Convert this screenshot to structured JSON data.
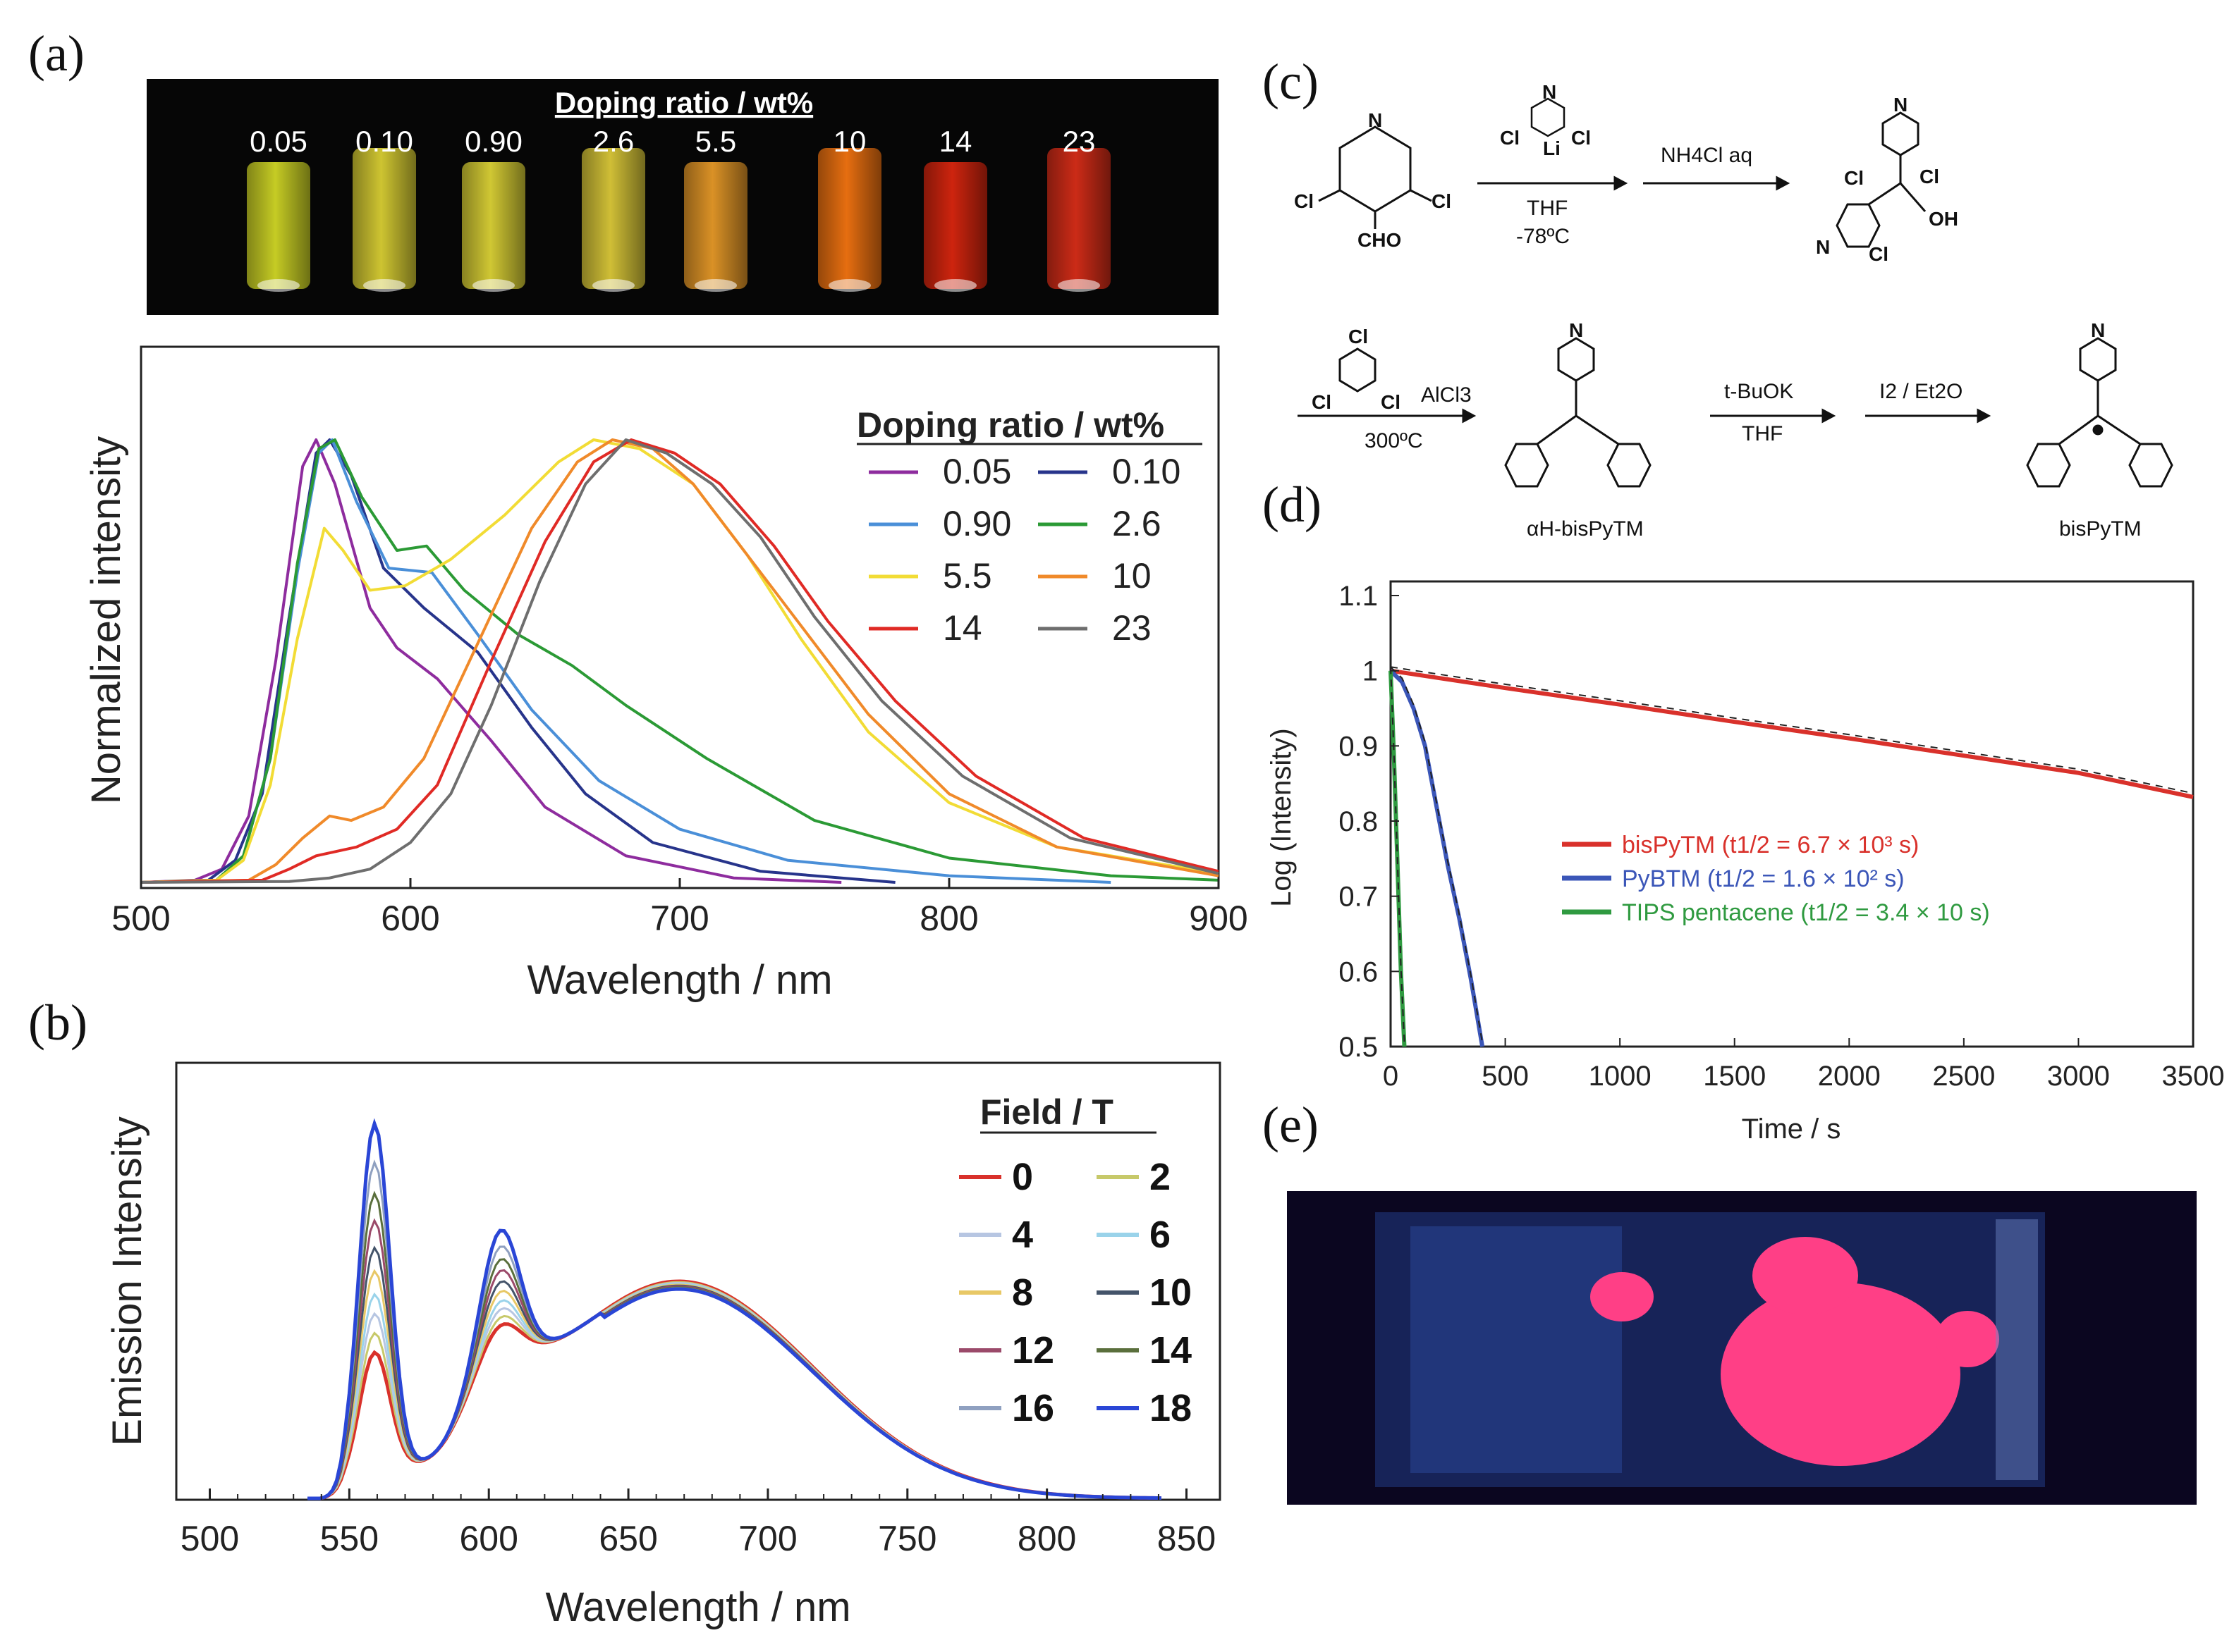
{
  "panels": {
    "a": "(a)",
    "b": "(b)",
    "c": "(c)",
    "d": "(d)",
    "e": "(e)"
  },
  "photo_a": {
    "title": "Doping ratio / wt%",
    "samples": [
      {
        "label": "0.05",
        "color": "#e8ef2a"
      },
      {
        "label": "0.10",
        "color": "#f2e63a"
      },
      {
        "label": "0.90",
        "color": "#f5ea3c"
      },
      {
        "label": "2.6",
        "color": "#f3df40"
      },
      {
        "label": "5.5",
        "color": "#f2a12a"
      },
      {
        "label": "10",
        "color": "#ff7a12"
      },
      {
        "label": "14",
        "color": "#e3280f"
      },
      {
        "label": "23",
        "color": "#e2301a"
      }
    ]
  },
  "scheme_c": {
    "reagent1_top": "Cl",
    "reagent1_li": "Li",
    "thf": "THF",
    "temp1": "-78ºC",
    "quench": "NH4Cl aq",
    "alcl3": "AlCl3",
    "temp2": "300ºC",
    "base": "t-BuOK",
    "thf2": "THF",
    "oxid": "I2 / Et2O",
    "cho": "CHO",
    "oh": "OH",
    "cl": "Cl",
    "n": "N",
    "precursor_label": "αH-bisPyTM",
    "product_label": "bisPyTM"
  },
  "chart_data": [
    {
      "id": "a",
      "type": "line",
      "xlabel": "Wavelength / nm",
      "ylabel": "Normalized intensity",
      "xlim": [
        500,
        900
      ],
      "ylim": [
        0,
        1.0
      ],
      "xticks": [
        "500",
        "600",
        "700",
        "800",
        "900"
      ],
      "legend_title": "Doping ratio / wt%",
      "series": [
        {
          "name": "0.05",
          "color": "#8e2c9e",
          "points": [
            [
              500,
              0
            ],
            [
              520,
              0.005
            ],
            [
              530,
              0.03
            ],
            [
              540,
              0.15
            ],
            [
              550,
              0.5
            ],
            [
              560,
              0.94
            ],
            [
              565,
              1.0
            ],
            [
              572,
              0.9
            ],
            [
              585,
              0.62
            ],
            [
              595,
              0.53
            ],
            [
              610,
              0.46
            ],
            [
              630,
              0.32
            ],
            [
              650,
              0.17
            ],
            [
              680,
              0.06
            ],
            [
              720,
              0.01
            ],
            [
              760,
              0
            ]
          ]
        },
        {
          "name": "0.10",
          "color": "#27348b",
          "points": [
            [
              500,
              0
            ],
            [
              525,
              0.005
            ],
            [
              535,
              0.05
            ],
            [
              545,
              0.2
            ],
            [
              555,
              0.6
            ],
            [
              565,
              0.97
            ],
            [
              570,
              1.0
            ],
            [
              578,
              0.92
            ],
            [
              590,
              0.71
            ],
            [
              605,
              0.62
            ],
            [
              625,
              0.52
            ],
            [
              645,
              0.35
            ],
            [
              665,
              0.2
            ],
            [
              690,
              0.09
            ],
            [
              730,
              0.025
            ],
            [
              780,
              0
            ]
          ]
        },
        {
          "name": "0.90",
          "color": "#4a8fd8",
          "points": [
            [
              500,
              0
            ],
            [
              528,
              0.005
            ],
            [
              538,
              0.06
            ],
            [
              548,
              0.28
            ],
            [
              558,
              0.7
            ],
            [
              566,
              0.97
            ],
            [
              571,
              1.0
            ],
            [
              580,
              0.86
            ],
            [
              592,
              0.71
            ],
            [
              608,
              0.7
            ],
            [
              625,
              0.56
            ],
            [
              645,
              0.39
            ],
            [
              670,
              0.23
            ],
            [
              700,
              0.12
            ],
            [
              740,
              0.05
            ],
            [
              800,
              0.015
            ],
            [
              860,
              0
            ]
          ]
        },
        {
          "name": "2.6",
          "color": "#2b9a35",
          "points": [
            [
              500,
              0
            ],
            [
              528,
              0.005
            ],
            [
              538,
              0.06
            ],
            [
              548,
              0.28
            ],
            [
              558,
              0.72
            ],
            [
              566,
              0.98
            ],
            [
              572,
              1.0
            ],
            [
              582,
              0.87
            ],
            [
              595,
              0.75
            ],
            [
              606,
              0.76
            ],
            [
              620,
              0.66
            ],
            [
              640,
              0.56
            ],
            [
              660,
              0.49
            ],
            [
              680,
              0.4
            ],
            [
              710,
              0.28
            ],
            [
              750,
              0.14
            ],
            [
              800,
              0.055
            ],
            [
              860,
              0.015
            ],
            [
              900,
              0.005
            ]
          ]
        },
        {
          "name": "5.5",
          "color": "#f2dc35",
          "points": [
            [
              500,
              0
            ],
            [
              528,
              0.005
            ],
            [
              538,
              0.05
            ],
            [
              548,
              0.22
            ],
            [
              558,
              0.55
            ],
            [
              568,
              0.8
            ],
            [
              575,
              0.75
            ],
            [
              585,
              0.66
            ],
            [
              598,
              0.67
            ],
            [
              615,
              0.73
            ],
            [
              635,
              0.83
            ],
            [
              655,
              0.95
            ],
            [
              668,
              1.0
            ],
            [
              685,
              0.98
            ],
            [
              705,
              0.9
            ],
            [
              725,
              0.74
            ],
            [
              745,
              0.55
            ],
            [
              770,
              0.34
            ],
            [
              800,
              0.18
            ],
            [
              840,
              0.08
            ],
            [
              900,
              0.02
            ]
          ]
        },
        {
          "name": "10",
          "color": "#f08a2a",
          "points": [
            [
              500,
              0
            ],
            [
              540,
              0.005
            ],
            [
              550,
              0.04
            ],
            [
              560,
              0.1
            ],
            [
              570,
              0.15
            ],
            [
              578,
              0.14
            ],
            [
              590,
              0.17
            ],
            [
              605,
              0.28
            ],
            [
              625,
              0.54
            ],
            [
              645,
              0.8
            ],
            [
              662,
              0.95
            ],
            [
              675,
              1.0
            ],
            [
              690,
              0.98
            ],
            [
              705,
              0.9
            ],
            [
              725,
              0.74
            ],
            [
              745,
              0.58
            ],
            [
              770,
              0.38
            ],
            [
              800,
              0.2
            ],
            [
              840,
              0.08
            ],
            [
              900,
              0.015
            ]
          ]
        },
        {
          "name": "14",
          "color": "#e02a25",
          "points": [
            [
              500,
              0
            ],
            [
              545,
              0.005
            ],
            [
              555,
              0.03
            ],
            [
              565,
              0.06
            ],
            [
              580,
              0.08
            ],
            [
              595,
              0.12
            ],
            [
              610,
              0.22
            ],
            [
              630,
              0.5
            ],
            [
              650,
              0.77
            ],
            [
              668,
              0.95
            ],
            [
              682,
              1.0
            ],
            [
              698,
              0.97
            ],
            [
              715,
              0.9
            ],
            [
              735,
              0.76
            ],
            [
              755,
              0.59
            ],
            [
              780,
              0.41
            ],
            [
              810,
              0.24
            ],
            [
              850,
              0.1
            ],
            [
              900,
              0.025
            ]
          ]
        },
        {
          "name": "23",
          "color": "#6e6e6e",
          "points": [
            [
              500,
              0
            ],
            [
              555,
              0.002
            ],
            [
              570,
              0.01
            ],
            [
              585,
              0.03
            ],
            [
              600,
              0.09
            ],
            [
              615,
              0.2
            ],
            [
              630,
              0.4
            ],
            [
              648,
              0.68
            ],
            [
              665,
              0.9
            ],
            [
              680,
              1.0
            ],
            [
              695,
              0.97
            ],
            [
              712,
              0.9
            ],
            [
              730,
              0.78
            ],
            [
              750,
              0.6
            ],
            [
              775,
              0.41
            ],
            [
              805,
              0.24
            ],
            [
              845,
              0.1
            ],
            [
              900,
              0.02
            ]
          ]
        }
      ]
    },
    {
      "id": "b",
      "type": "line",
      "xlabel": "Wavelength / nm",
      "ylabel": "Emission Intensity",
      "xlim": [
        500,
        850
      ],
      "ylim": [
        0,
        1.0
      ],
      "xticks": [
        "500",
        "550",
        "600",
        "650",
        "700",
        "750",
        "800",
        "850"
      ],
      "legend_title": "Field / T",
      "series": [
        {
          "name": "0",
          "color": "#d9312b",
          "peak": 0.33
        },
        {
          "name": "2",
          "color": "#c7c96a",
          "peak": 0.38
        },
        {
          "name": "4",
          "color": "#b7c6e2",
          "peak": 0.43
        },
        {
          "name": "6",
          "color": "#9ad3ea",
          "peak": 0.48
        },
        {
          "name": "8",
          "color": "#e8c866",
          "peak": 0.54
        },
        {
          "name": "10",
          "color": "#44546a",
          "peak": 0.6
        },
        {
          "name": "12",
          "color": "#9b4a6a",
          "peak": 0.67
        },
        {
          "name": "14",
          "color": "#5a6f3c",
          "peak": 0.74
        },
        {
          "name": "16",
          "color": "#8fa0c0",
          "peak": 0.82
        },
        {
          "name": "18",
          "color": "#2a46d6",
          "peak": 0.92
        }
      ]
    },
    {
      "id": "d",
      "type": "line",
      "xlabel": "Time / s",
      "ylabel": "Log (Intensity)",
      "xlim": [
        0,
        3500
      ],
      "ylim": [
        0.5,
        1.1
      ],
      "xticks": [
        "0",
        "500",
        "1000",
        "1500",
        "2000",
        "2500",
        "3000",
        "3500"
      ],
      "yticks": [
        "0.5",
        "0.6",
        "0.7",
        "0.8",
        "0.9",
        "1",
        "1.1"
      ],
      "series": [
        {
          "name": "bisPyTM",
          "half_life": "6.7 × 10³ s",
          "color": "#d9312b",
          "points": [
            [
              0,
              1.0
            ],
            [
              500,
              0.977
            ],
            [
              1000,
              0.955
            ],
            [
              1500,
              0.932
            ],
            [
              2000,
              0.91
            ],
            [
              2500,
              0.887
            ],
            [
              3000,
              0.864
            ],
            [
              3500,
              0.832
            ]
          ]
        },
        {
          "name": "PyBTM",
          "half_life": "1.6 × 10² s",
          "color": "#3b56b8",
          "points": [
            [
              0,
              1.0
            ],
            [
              50,
              0.985
            ],
            [
              100,
              0.95
            ],
            [
              150,
              0.9
            ],
            [
              200,
              0.82
            ],
            [
              250,
              0.74
            ],
            [
              300,
              0.67
            ],
            [
              350,
              0.59
            ],
            [
              400,
              0.5
            ]
          ]
        },
        {
          "name": "TIPS pentacene",
          "half_life": "3.4 × 10 s",
          "color": "#2f9a40",
          "points": [
            [
              0,
              1.0
            ],
            [
              15,
              0.88
            ],
            [
              30,
              0.74
            ],
            [
              45,
              0.6
            ],
            [
              60,
              0.5
            ]
          ]
        }
      ]
    }
  ]
}
